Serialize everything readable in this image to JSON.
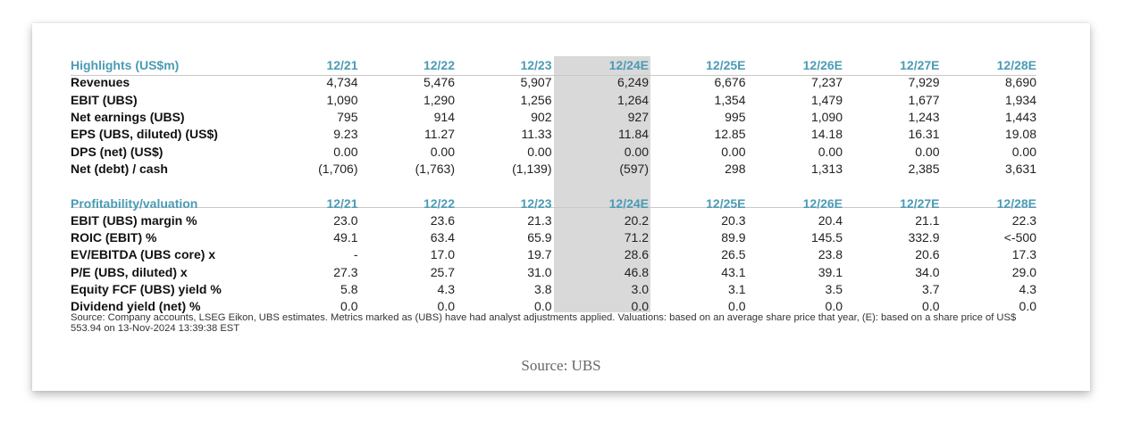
{
  "highlights": {
    "title": "Highlights (US$m)",
    "periods": [
      "12/21",
      "12/22",
      "12/23",
      "12/24E",
      "12/25E",
      "12/26E",
      "12/27E",
      "12/28E"
    ],
    "rows": [
      {
        "label": "Revenues",
        "values": [
          "4,734",
          "5,476",
          "5,907",
          "6,249",
          "6,676",
          "7,237",
          "7,929",
          "8,690"
        ]
      },
      {
        "label": "EBIT (UBS)",
        "values": [
          "1,090",
          "1,290",
          "1,256",
          "1,264",
          "1,354",
          "1,479",
          "1,677",
          "1,934"
        ]
      },
      {
        "label": "Net earnings (UBS)",
        "values": [
          "795",
          "914",
          "902",
          "927",
          "995",
          "1,090",
          "1,243",
          "1,443"
        ]
      },
      {
        "label": "EPS (UBS, diluted) (US$)",
        "values": [
          "9.23",
          "11.27",
          "11.33",
          "11.84",
          "12.85",
          "14.18",
          "16.31",
          "19.08"
        ]
      },
      {
        "label": "DPS (net) (US$)",
        "values": [
          "0.00",
          "0.00",
          "0.00",
          "0.00",
          "0.00",
          "0.00",
          "0.00",
          "0.00"
        ]
      },
      {
        "label": "Net (debt) / cash",
        "values": [
          "(1,706)",
          "(1,763)",
          "(1,139)",
          "(597)",
          "298",
          "1,313",
          "2,385",
          "3,631"
        ]
      }
    ]
  },
  "profitability": {
    "title": "Profitability/valuation",
    "periods": [
      "12/21",
      "12/22",
      "12/23",
      "12/24E",
      "12/25E",
      "12/26E",
      "12/27E",
      "12/28E"
    ],
    "rows": [
      {
        "label": "EBIT (UBS) margin %",
        "values": [
          "23.0",
          "23.6",
          "21.3",
          "20.2",
          "20.3",
          "20.4",
          "21.1",
          "22.3"
        ]
      },
      {
        "label": "ROIC (EBIT) %",
        "values": [
          "49.1",
          "63.4",
          "65.9",
          "71.2",
          "89.9",
          "145.5",
          "332.9",
          "<-500"
        ]
      },
      {
        "label": "EV/EBITDA (UBS core) x",
        "values": [
          "-",
          "17.0",
          "19.7",
          "28.6",
          "26.5",
          "23.8",
          "20.6",
          "17.3"
        ]
      },
      {
        "label": "P/E (UBS, diluted) x",
        "values": [
          "27.3",
          "25.7",
          "31.0",
          "46.8",
          "43.1",
          "39.1",
          "34.0",
          "29.0"
        ]
      },
      {
        "label": "Equity FCF (UBS) yield %",
        "values": [
          "5.8",
          "4.3",
          "3.8",
          "3.0",
          "3.1",
          "3.5",
          "3.7",
          "4.3"
        ]
      },
      {
        "label": "Dividend yield (net) %",
        "values": [
          "0.0",
          "0.0",
          "0.0",
          "0.0",
          "0.0",
          "0.0",
          "0.0",
          "0.0"
        ]
      }
    ]
  },
  "source_note": "Source: Company accounts, LSEG Eikon, UBS estimates. Metrics marked as (UBS) have had analyst adjustments applied. Valuations: based on an average share price that year, (E): based on a share price of US$ 553.94 on 13-Nov-2024 13:39:38 EST",
  "caption": "Source: UBS",
  "colors": {
    "header_accent": "#4a9bb5",
    "highlight_column": "#d9d9d9"
  }
}
